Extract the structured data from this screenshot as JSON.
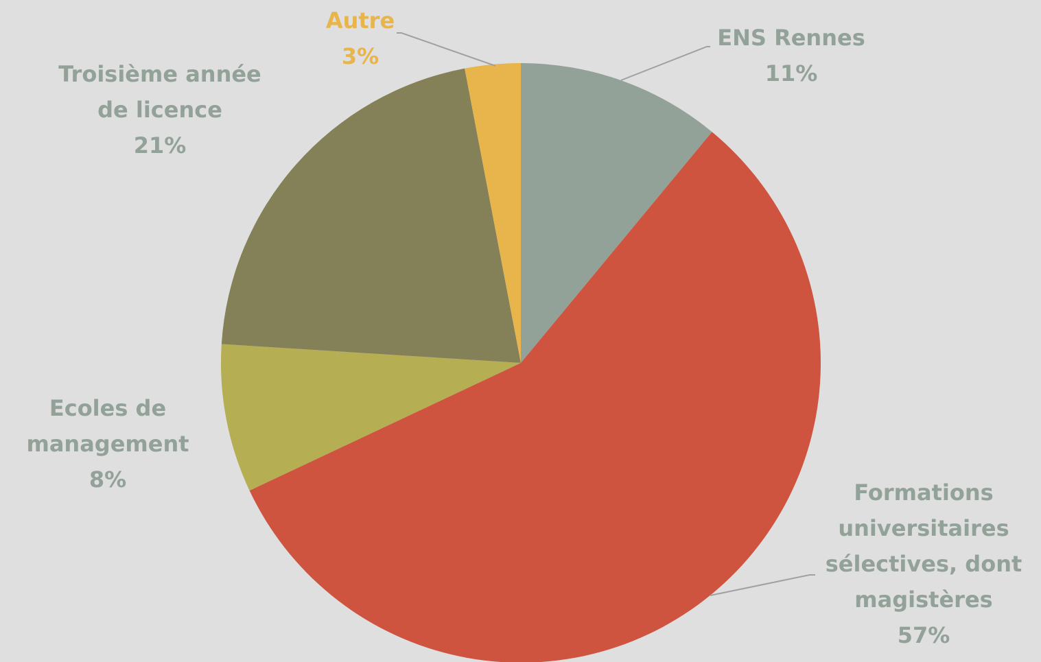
{
  "chart_data": {
    "type": "pie",
    "categories": [
      "ENS Rennes",
      "Formations universitaires sélectives, dont magistères",
      "Ecoles de management",
      "Troisième année de licence",
      "Autre"
    ],
    "values": [
      11,
      57,
      8,
      21,
      3
    ],
    "value_labels": [
      "11%",
      "57%",
      "8%",
      "21%",
      "3%"
    ],
    "colors": [
      "#93a299",
      "#cf543f",
      "#b5ae53",
      "#848058",
      "#e8b54d"
    ],
    "label_colors": [
      "#93a299",
      "#93a299",
      "#93a299",
      "#93a299",
      "#e8b54d"
    ]
  }
}
